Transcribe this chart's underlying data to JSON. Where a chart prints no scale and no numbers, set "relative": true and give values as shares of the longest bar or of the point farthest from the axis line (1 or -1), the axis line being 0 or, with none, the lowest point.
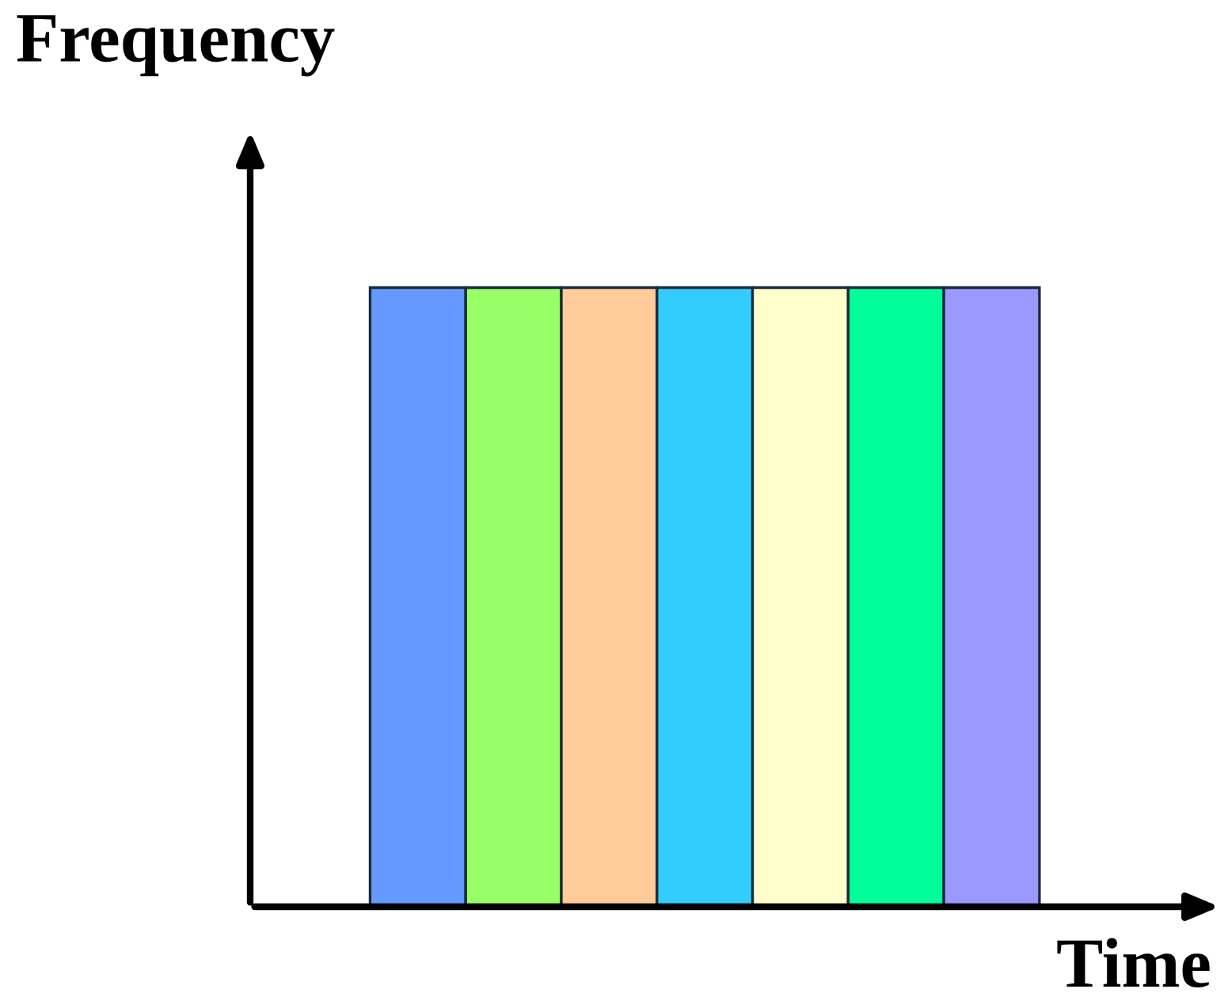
{
  "chart_data": {
    "type": "bar",
    "xlabel": "Time",
    "ylabel": "Frequency",
    "categories": [
      null,
      null,
      null,
      null,
      null,
      null,
      null
    ],
    "values": [
      1,
      1,
      1,
      1,
      1,
      1,
      1
    ],
    "colors": [
      "#6699ff",
      "#99ff66",
      "#ffcc99",
      "#33ccff",
      "#ffffcc",
      "#00ff99",
      "#9999ff"
    ],
    "relative": true
  }
}
